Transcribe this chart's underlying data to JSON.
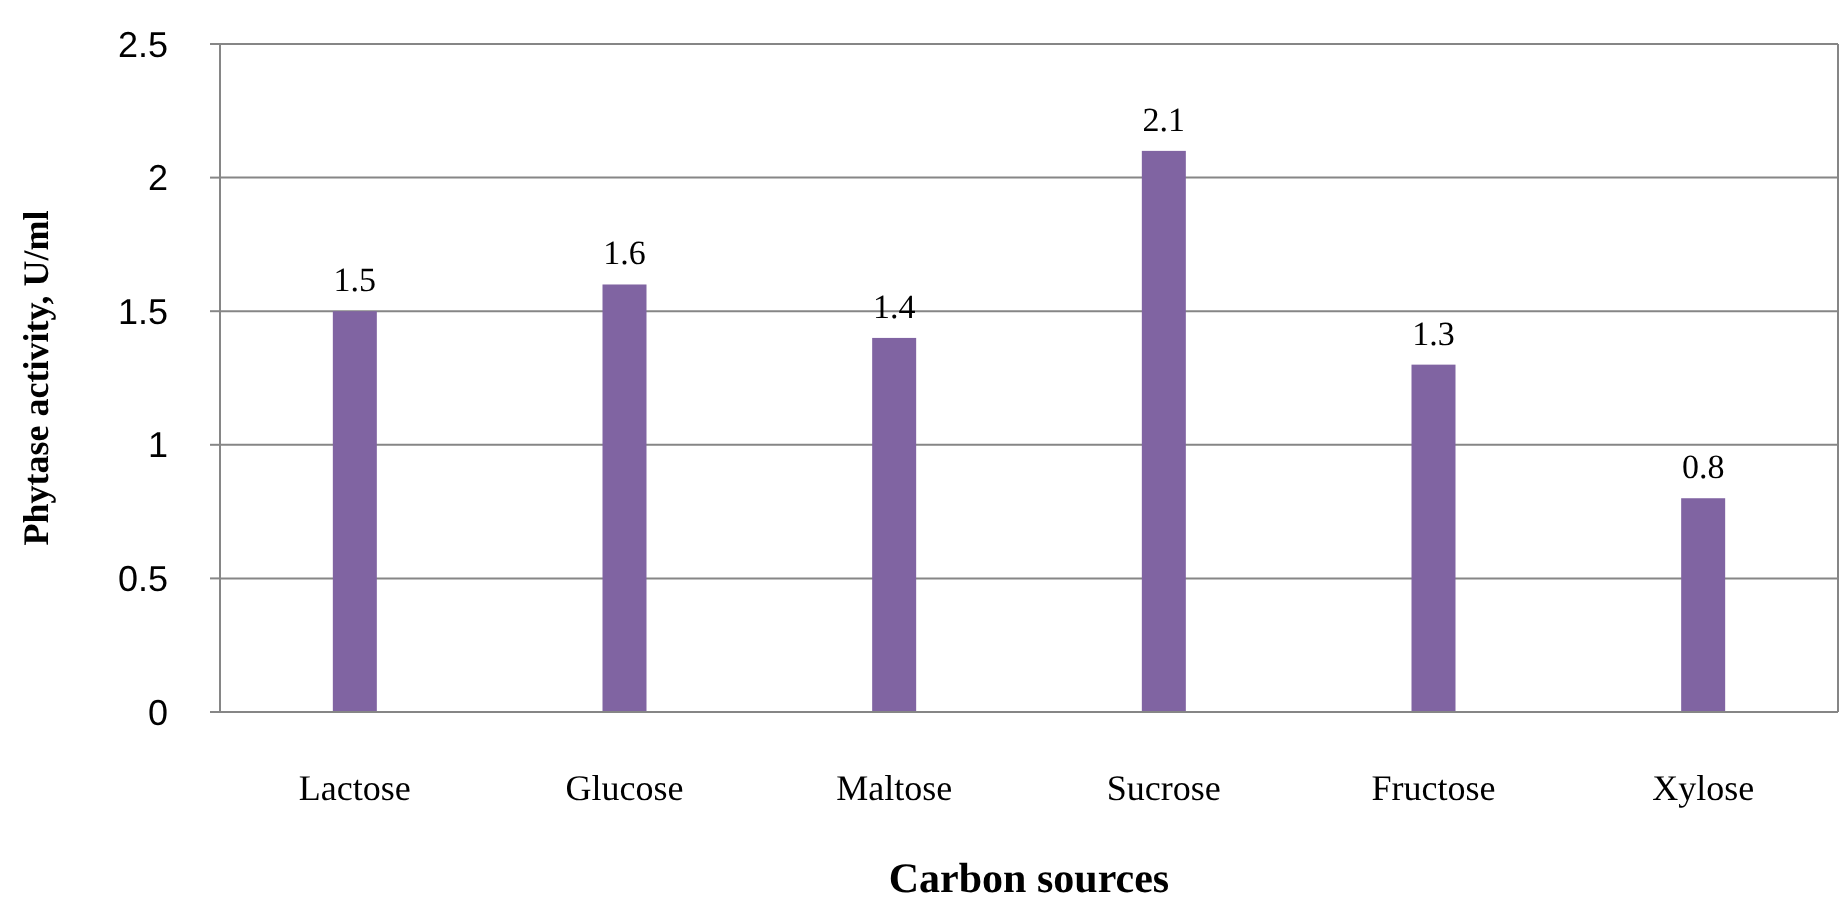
{
  "chart_data": {
    "type": "bar",
    "xlabel": "Carbon sources",
    "ylabel": "Phytase activity, U/ml",
    "categories": [
      "Lactose",
      "Glucose",
      "Maltose",
      "Sucrose",
      "Fructose",
      "Xylose"
    ],
    "values": [
      1.5,
      1.6,
      1.4,
      2.1,
      1.3,
      0.8
    ],
    "color": "#8064a2",
    "ylim": [
      0,
      2.5
    ],
    "yticks": [
      0,
      0.5,
      1,
      1.5,
      2,
      2.5
    ],
    "grid": "y",
    "data_labels": true
  }
}
